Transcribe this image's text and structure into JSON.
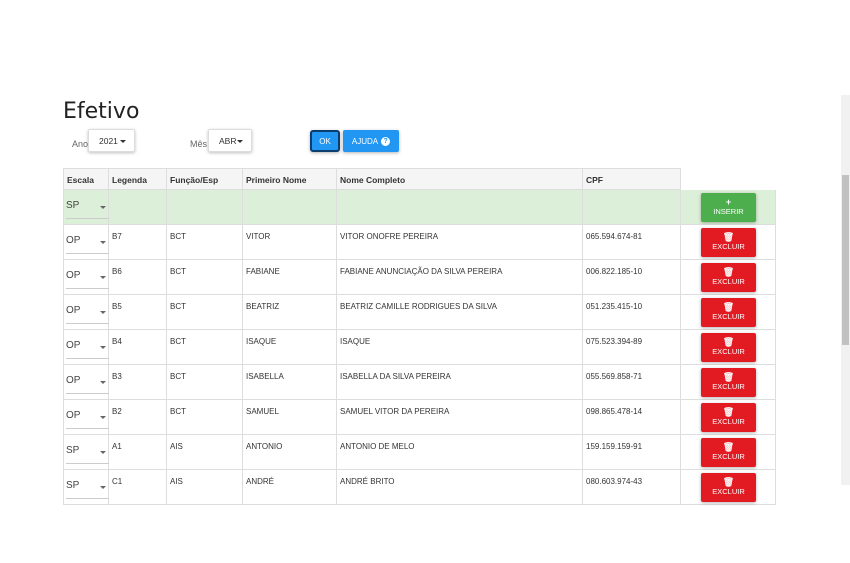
{
  "page": {
    "title": "Efetivo"
  },
  "filters": {
    "ano_label": "Ano",
    "ano_value": "2021",
    "mes_label": "Mês",
    "mes_value": "ABR",
    "ok_label": "OK",
    "help_label": "AJUDA",
    "help_icon": "?"
  },
  "table": {
    "headers": [
      "Escala",
      "Legenda",
      "Função/Esp",
      "Primeiro Nome",
      "Nome Completo",
      "CPF"
    ],
    "insert_row": {
      "escala": "SP",
      "button_label": "INSERIR",
      "button_icon": "+"
    },
    "delete_label": "EXCLUIR",
    "delete_icon": "🗑",
    "rows": [
      {
        "escala": "OP",
        "legenda": "B7",
        "funcao": "BCT",
        "primeiro": "VITOR",
        "completo": "VITOR ONOFRE PEREIRA",
        "cpf": "065.594.674-81"
      },
      {
        "escala": "OP",
        "legenda": "B6",
        "funcao": "BCT",
        "primeiro": "FABIANE",
        "completo": "FABIANE ANUNCIAÇÃO DA SILVA PEREIRA",
        "cpf": "006.822.185-10"
      },
      {
        "escala": "OP",
        "legenda": "B5",
        "funcao": "BCT",
        "primeiro": "BEATRIZ",
        "completo": "BEATRIZ CAMILLE RODRIGUES DA SILVA",
        "cpf": "051.235.415-10"
      },
      {
        "escala": "OP",
        "legenda": "B4",
        "funcao": "BCT",
        "primeiro": "ISAQUE",
        "completo": "ISAQUE",
        "cpf": "075.523.394-89"
      },
      {
        "escala": "OP",
        "legenda": "B3",
        "funcao": "BCT",
        "primeiro": "ISABELLA",
        "completo": "ISABELLA DA SILVA PEREIRA",
        "cpf": "055.569.858-71"
      },
      {
        "escala": "OP",
        "legenda": "B2",
        "funcao": "BCT",
        "primeiro": "SAMUEL",
        "completo": "SAMUEL VITOR DA PEREIRA",
        "cpf": "098.865.478-14"
      },
      {
        "escala": "SP",
        "legenda": "A1",
        "funcao": "AIS",
        "primeiro": "ANTONIO",
        "completo": "ANTONIO DE MELO",
        "cpf": "159.159.159-91"
      },
      {
        "escala": "SP",
        "legenda": "C1",
        "funcao": "AIS",
        "primeiro": "ANDRÉ",
        "completo": "ANDRÉ BRITO",
        "cpf": "080.603.974-43"
      }
    ]
  }
}
